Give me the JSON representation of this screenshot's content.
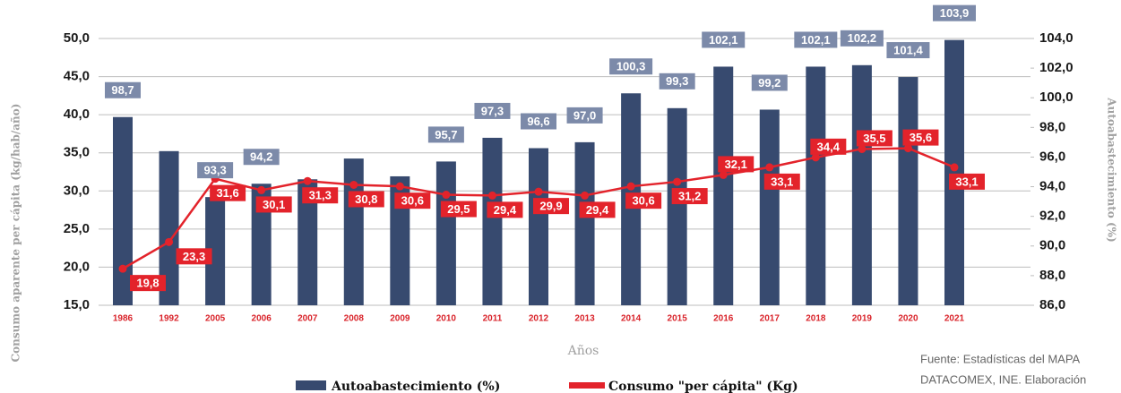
{
  "chart_data": {
    "type": "bar_line",
    "x_label": "Años",
    "y_label": "Consumo aparente per cápita (kg/hab/año)",
    "y2_label": "Autoabastecimiento (%)",
    "source": [
      "Fuente: Estadísticas del MAPA",
      "DATACOMEX, INE. Elaboración"
    ],
    "categories": [
      "1986",
      "1992",
      "2005",
      "2006",
      "2007",
      "2008",
      "2009",
      "2010",
      "2011",
      "2012",
      "2013",
      "2014",
      "2015",
      "2016",
      "2017",
      "2018",
      "2019",
      "2020",
      "2021"
    ],
    "series": [
      {
        "name": "Autoabastecimiento (%)",
        "type": "bar",
        "axis": "y2",
        "color": "#374a6f",
        "values": [
          98.7,
          96.4,
          93.3,
          94.2,
          94.5,
          95.9,
          94.7,
          95.7,
          97.3,
          96.6,
          97.0,
          100.3,
          99.3,
          102.1,
          99.2,
          102.1,
          102.2,
          101.4,
          103.9
        ],
        "value_labels": [
          "98,7",
          null,
          "93,3",
          "94,2",
          null,
          null,
          null,
          "95,7",
          "97,3",
          "96,6",
          "97,0",
          "100,3",
          "99,3",
          "102,1",
          "99,2",
          "102,1",
          "102,2",
          "101,4",
          "103,9"
        ]
      },
      {
        "name": "Consumo \"per cápita\" (Kg)",
        "type": "line",
        "axis": "y",
        "color": "#e3232b",
        "values": [
          19.8,
          23.3,
          31.6,
          30.1,
          31.3,
          30.8,
          30.6,
          29.5,
          29.4,
          29.9,
          29.4,
          30.6,
          31.2,
          32.1,
          33.1,
          34.4,
          35.5,
          35.6,
          33.1
        ],
        "value_labels": [
          "19,8",
          "23,3",
          "31,6",
          "30,1",
          "31,3",
          "30,8",
          "30,6",
          "29,5",
          "29,4",
          "29,9",
          "29,4",
          "30,6",
          "31,2",
          "32,1",
          "33,1",
          "34,4",
          "35,5",
          "35,6",
          "33,1"
        ]
      }
    ],
    "ylim": [
      15,
      50
    ],
    "yticks": [
      {
        "value": 15,
        "label": "15,0"
      },
      {
        "value": 20,
        "label": "20,0"
      },
      {
        "value": 25,
        "label": "25,0"
      },
      {
        "value": 30,
        "label": "30,0"
      },
      {
        "value": 35,
        "label": "35,0"
      },
      {
        "value": 40,
        "label": "40,0"
      },
      {
        "value": 45,
        "label": "45,0"
      },
      {
        "value": 50,
        "label": "50,0"
      }
    ],
    "y2lim": [
      86,
      104
    ],
    "y2ticks": [
      {
        "value": 86,
        "label": "86,0"
      },
      {
        "value": 88,
        "label": "88,0"
      },
      {
        "value": 90,
        "label": "90,0"
      },
      {
        "value": 92,
        "label": "92,0"
      },
      {
        "value": 94,
        "label": "94,0"
      },
      {
        "value": 96,
        "label": "96,0"
      },
      {
        "value": 98,
        "label": "98,0"
      },
      {
        "value": 100,
        "label": "100,0"
      },
      {
        "value": 102,
        "label": "102,0"
      },
      {
        "value": 104,
        "label": "104,0"
      }
    ],
    "grid": true,
    "legend": "bottom"
  }
}
